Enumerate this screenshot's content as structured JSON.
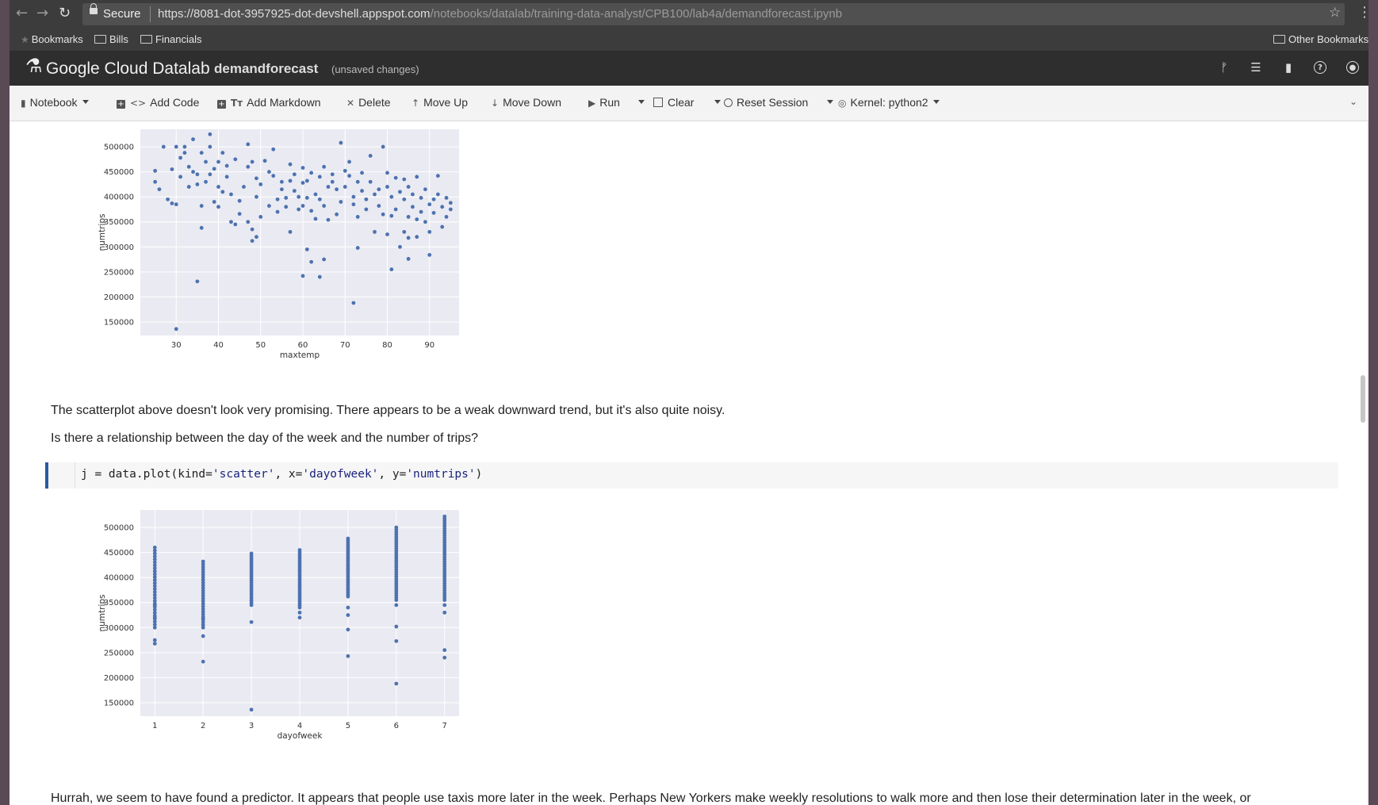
{
  "browser": {
    "secure_label": "Secure",
    "url_host": "https://8081-dot-3957925-dot-devshell.appspot.com",
    "url_path": "/notebooks/datalab/training-data-analyst/CPB100/lab4a/demandforecast.ipynb",
    "bookmarks": [
      "Bookmarks",
      "Bills",
      "Financials"
    ],
    "other_bookmarks": "Other Bookmarks"
  },
  "header": {
    "brand": "Google Cloud Datalab",
    "notebook_name": "demandforecast",
    "status": "(unsaved changes)"
  },
  "toolbar": {
    "notebook": "Notebook",
    "add_code": "Add Code",
    "add_markdown": "Add Markdown",
    "delete": "Delete",
    "move_up": "Move Up",
    "move_down": "Move Down",
    "run": "Run",
    "clear": "Clear",
    "reset_session": "Reset Session",
    "kernel": "Kernel: python2"
  },
  "cells": {
    "md1": "The scatterplot above doesn't look very promising. There appears to be a weak downward trend, but it's also quite noisy.",
    "md2": "Is there a relationship between the day of the week and the number of trips?",
    "code_prefix": "j = data.plot(kind=",
    "code_s1": "'scatter'",
    "code_mid1": ", x=",
    "code_s2": "'dayofweek'",
    "code_mid2": ", y=",
    "code_s3": "'numtrips'",
    "code_suffix": ")",
    "md3": "Hurrah, we seem to have found a predictor. It appears that people use taxis more later in the week. Perhaps New Yorkers make weekly resolutions to walk more and then lose their determination later in the week, or"
  },
  "chart_data": [
    {
      "type": "scatter",
      "xlabel": "maxtemp",
      "ylabel": "numtrips",
      "xticks": [
        30,
        40,
        50,
        60,
        70,
        80,
        90
      ],
      "yticks": [
        150000,
        200000,
        250000,
        300000,
        350000,
        400000,
        450000,
        500000
      ],
      "xlim": [
        21.5,
        97
      ],
      "ylim": [
        123000,
        535000
      ],
      "grid": true,
      "color": "#4c72b0",
      "background": "#eaeaf2",
      "points": [
        [
          30,
          136000
        ],
        [
          35,
          231000
        ],
        [
          36,
          338000
        ],
        [
          72,
          188000
        ],
        [
          60,
          242000
        ],
        [
          64,
          240000
        ],
        [
          62,
          270000
        ],
        [
          65,
          275000
        ],
        [
          61,
          295000
        ],
        [
          73,
          298000
        ],
        [
          81,
          255000
        ],
        [
          85,
          276000
        ],
        [
          90,
          284000
        ],
        [
          25,
          452000
        ],
        [
          25,
          430000
        ],
        [
          26,
          415000
        ],
        [
          27,
          500000
        ],
        [
          28,
          395000
        ],
        [
          29,
          387000
        ],
        [
          29,
          455000
        ],
        [
          30,
          385000
        ],
        [
          30,
          500000
        ],
        [
          31,
          440000
        ],
        [
          31,
          478000
        ],
        [
          32,
          488000
        ],
        [
          32,
          500000
        ],
        [
          33,
          420000
        ],
        [
          33,
          460000
        ],
        [
          34,
          515000
        ],
        [
          34,
          450000
        ],
        [
          35,
          445000
        ],
        [
          35,
          425000
        ],
        [
          36,
          382000
        ],
        [
          36,
          488000
        ],
        [
          37,
          430000
        ],
        [
          37,
          470000
        ],
        [
          38,
          525000
        ],
        [
          38,
          500000
        ],
        [
          38,
          445000
        ],
        [
          39,
          456000
        ],
        [
          39,
          390000
        ],
        [
          40,
          470000
        ],
        [
          40,
          380000
        ],
        [
          40,
          420000
        ],
        [
          41,
          410000
        ],
        [
          41,
          488000
        ],
        [
          42,
          440000
        ],
        [
          42,
          462000
        ],
        [
          43,
          350000
        ],
        [
          43,
          405000
        ],
        [
          44,
          345000
        ],
        [
          44,
          475000
        ],
        [
          45,
          392000
        ],
        [
          45,
          366000
        ],
        [
          46,
          420000
        ],
        [
          47,
          505000
        ],
        [
          47,
          460000
        ],
        [
          47,
          350000
        ],
        [
          48,
          312000
        ],
        [
          48,
          335000
        ],
        [
          48,
          470000
        ],
        [
          49,
          320000
        ],
        [
          49,
          437000
        ],
        [
          49,
          400000
        ],
        [
          50,
          360000
        ],
        [
          50,
          425000
        ],
        [
          51,
          472000
        ],
        [
          52,
          450000
        ],
        [
          52,
          382000
        ],
        [
          53,
          495000
        ],
        [
          53,
          442000
        ],
        [
          54,
          395000
        ],
        [
          54,
          370000
        ],
        [
          55,
          430000
        ],
        [
          55,
          415000
        ],
        [
          56,
          380000
        ],
        [
          56,
          398000
        ],
        [
          57,
          330000
        ],
        [
          57,
          465000
        ],
        [
          57,
          432000
        ],
        [
          58,
          412000
        ],
        [
          58,
          445000
        ],
        [
          59,
          400000
        ],
        [
          59,
          375000
        ],
        [
          60,
          382000
        ],
        [
          60,
          428000
        ],
        [
          60,
          458000
        ],
        [
          61,
          398000
        ],
        [
          61,
          432000
        ],
        [
          62,
          448000
        ],
        [
          62,
          372000
        ],
        [
          63,
          356000
        ],
        [
          63,
          405000
        ],
        [
          64,
          440000
        ],
        [
          64,
          395000
        ],
        [
          65,
          382000
        ],
        [
          65,
          460000
        ],
        [
          66,
          420000
        ],
        [
          66,
          354000
        ],
        [
          67,
          430000
        ],
        [
          67,
          445000
        ],
        [
          68,
          365000
        ],
        [
          68,
          415000
        ],
        [
          69,
          508000
        ],
        [
          69,
          390000
        ],
        [
          70,
          452000
        ],
        [
          70,
          420000
        ],
        [
          71,
          470000
        ],
        [
          71,
          442000
        ],
        [
          72,
          400000
        ],
        [
          72,
          385000
        ],
        [
          73,
          360000
        ],
        [
          73,
          430000
        ],
        [
          74,
          412000
        ],
        [
          74,
          448000
        ],
        [
          75,
          395000
        ],
        [
          75,
          375000
        ],
        [
          76,
          482000
        ],
        [
          76,
          430000
        ],
        [
          77,
          330000
        ],
        [
          77,
          405000
        ],
        [
          78,
          415000
        ],
        [
          78,
          382000
        ],
        [
          79,
          365000
        ],
        [
          79,
          500000
        ],
        [
          80,
          448000
        ],
        [
          80,
          420000
        ],
        [
          80,
          325000
        ],
        [
          81,
          362000
        ],
        [
          81,
          400000
        ],
        [
          82,
          438000
        ],
        [
          82,
          375000
        ],
        [
          83,
          300000
        ],
        [
          83,
          410000
        ],
        [
          84,
          330000
        ],
        [
          84,
          395000
        ],
        [
          84,
          435000
        ],
        [
          85,
          420000
        ],
        [
          85,
          360000
        ],
        [
          85,
          318000
        ],
        [
          86,
          380000
        ],
        [
          86,
          405000
        ],
        [
          87,
          440000
        ],
        [
          87,
          355000
        ],
        [
          87,
          320000
        ],
        [
          88,
          398000
        ],
        [
          88,
          370000
        ],
        [
          89,
          415000
        ],
        [
          89,
          350000
        ],
        [
          90,
          385000
        ],
        [
          90,
          330000
        ],
        [
          91,
          368000
        ],
        [
          91,
          395000
        ],
        [
          92,
          442000
        ],
        [
          92,
          405000
        ],
        [
          93,
          380000
        ],
        [
          93,
          340000
        ],
        [
          94,
          398000
        ],
        [
          94,
          360000
        ],
        [
          95,
          388000
        ],
        [
          95,
          375000
        ]
      ]
    },
    {
      "type": "scatter",
      "xlabel": "dayofweek",
      "ylabel": "numtrips",
      "xticks": [
        1,
        2,
        3,
        4,
        5,
        6,
        7
      ],
      "yticks": [
        150000,
        200000,
        250000,
        300000,
        350000,
        400000,
        450000,
        500000
      ],
      "xlim": [
        0.7,
        7.3
      ],
      "ylim": [
        123000,
        535000
      ],
      "grid": true,
      "color": "#4c72b0",
      "background": "#eaeaf2",
      "series_by_day": [
        {
          "x": 1,
          "ymin": 300000,
          "ymax": 460000,
          "n": 28,
          "extra": [
            268000,
            275000,
            345000,
            320000
          ]
        },
        {
          "x": 2,
          "ymin": 300000,
          "ymax": 432000,
          "n": 26,
          "extra": [
            232000,
            283000,
            318000
          ]
        },
        {
          "x": 3,
          "ymin": 345000,
          "ymax": 448000,
          "n": 24,
          "extra": [
            136000,
            311000
          ]
        },
        {
          "x": 4,
          "ymin": 340000,
          "ymax": 455000,
          "n": 28,
          "extra": [
            320000,
            330000
          ]
        },
        {
          "x": 5,
          "ymin": 362000,
          "ymax": 478000,
          "n": 30,
          "extra": [
            243000,
            296000,
            325000,
            340000
          ]
        },
        {
          "x": 6,
          "ymin": 355000,
          "ymax": 500000,
          "n": 32,
          "extra": [
            188000,
            273000,
            302000,
            345000
          ]
        },
        {
          "x": 7,
          "ymin": 355000,
          "ymax": 522000,
          "n": 36,
          "extra": [
            240000,
            255000,
            330000,
            345000
          ]
        }
      ]
    }
  ]
}
